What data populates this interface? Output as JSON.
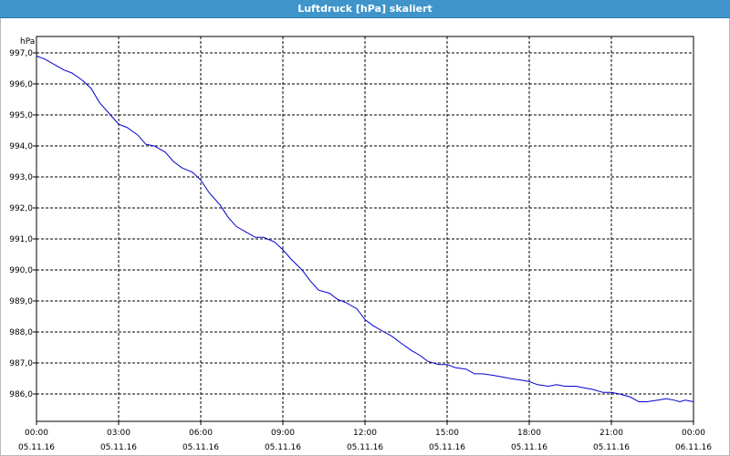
{
  "window": {
    "title": "Luftdruck [hPa] skaliert"
  },
  "chart_data": {
    "type": "line",
    "title": "Luftdruck [hPa] skaliert",
    "ylabel": "hPa",
    "xlabel": "",
    "ylim": [
      985.3,
      997.0
    ],
    "xlim": [
      0,
      24
    ],
    "grid": true,
    "y_ticks": [
      "997,0",
      "996,0",
      "995,0",
      "994,0",
      "993,0",
      "992,0",
      "991,0",
      "990,0",
      "989,0",
      "988,0",
      "987,0",
      "986,0"
    ],
    "x_ticks": [
      {
        "time": "00:00",
        "date": "05.11.16"
      },
      {
        "time": "03:00",
        "date": "05.11.16"
      },
      {
        "time": "06:00",
        "date": "05.11.16"
      },
      {
        "time": "09:00",
        "date": "05.11.16"
      },
      {
        "time": "12:00",
        "date": "05.11.16"
      },
      {
        "time": "15:00",
        "date": "05.11.16"
      },
      {
        "time": "18:00",
        "date": "05.11.16"
      },
      {
        "time": "21:00",
        "date": "05.11.16"
      },
      {
        "time": "00:00",
        "date": "06.11.16"
      }
    ],
    "series": [
      {
        "color": "#0000cc",
        "x": [
          0,
          0.3,
          0.7,
          1.0,
          1.3,
          1.7,
          2.0,
          2.3,
          2.7,
          3.0,
          3.3,
          3.7,
          4.0,
          4.3,
          4.7,
          5.0,
          5.3,
          5.7,
          6.0,
          6.3,
          6.7,
          7.0,
          7.3,
          7.7,
          8.0,
          8.3,
          8.7,
          9.0,
          9.3,
          9.7,
          10.0,
          10.3,
          10.7,
          11.0,
          11.3,
          11.7,
          12.0,
          12.3,
          12.7,
          13.0,
          13.3,
          13.7,
          14.0,
          14.3,
          14.7,
          15.0,
          15.3,
          15.7,
          16.0,
          16.3,
          16.7,
          17.0,
          17.3,
          17.7,
          18.0,
          18.3,
          18.7,
          19.0,
          19.3,
          19.7,
          20.0,
          20.3,
          20.7,
          21.0,
          21.3,
          21.7,
          22.0,
          22.3,
          22.7,
          23.0,
          23.3,
          23.5,
          23.7,
          24.0
        ],
        "y": [
          996.9,
          996.8,
          996.6,
          996.45,
          996.35,
          996.1,
          995.85,
          995.4,
          995.0,
          994.7,
          994.6,
          994.35,
          994.05,
          994.0,
          993.8,
          993.5,
          993.3,
          993.15,
          992.9,
          992.5,
          992.1,
          991.7,
          991.4,
          991.2,
          991.05,
          991.05,
          990.9,
          990.65,
          990.35,
          990.0,
          989.65,
          989.35,
          989.25,
          989.05,
          988.95,
          988.75,
          988.4,
          988.2,
          988.0,
          987.85,
          987.65,
          987.4,
          987.25,
          987.05,
          986.95,
          986.95,
          986.85,
          986.8,
          986.65,
          986.65,
          986.6,
          986.55,
          986.5,
          986.45,
          986.4,
          986.3,
          986.25,
          986.3,
          986.25,
          986.25,
          986.2,
          986.15,
          986.05,
          986.05,
          986.0,
          985.9,
          985.75,
          985.75,
          985.8,
          985.85,
          985.8,
          985.75,
          985.8,
          985.75
        ]
      }
    ]
  }
}
